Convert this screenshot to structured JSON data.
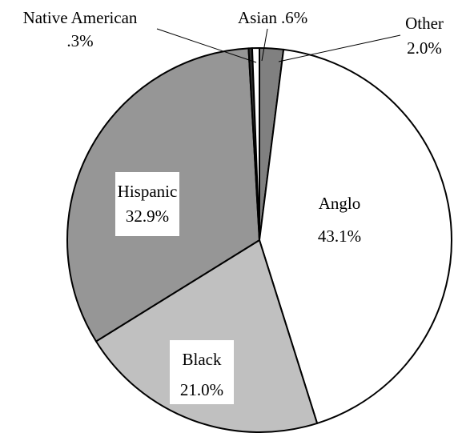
{
  "chart_data": {
    "type": "pie",
    "title": "",
    "slices": [
      {
        "name": "Anglo",
        "value_label": "43.1%",
        "value": 43.1,
        "color": "#ffffff"
      },
      {
        "name": "Black",
        "value_label": "21.0%",
        "value": 21.0,
        "color": "#c0c0c0"
      },
      {
        "name": "Hispanic",
        "value_label": "32.9%",
        "value": 32.9,
        "color": "#969696"
      },
      {
        "name": "Native American",
        "value_label": ".3%",
        "value": 0.3,
        "color": "#333333"
      },
      {
        "name": "Asian",
        "value_label": ".6%",
        "value": 0.6,
        "color": "#ffffff"
      },
      {
        "name": "Other",
        "value_label": "2.0%",
        "value": 2.0,
        "color": "#808080"
      }
    ],
    "legend": "none",
    "start": "top, clockwise from Other"
  }
}
